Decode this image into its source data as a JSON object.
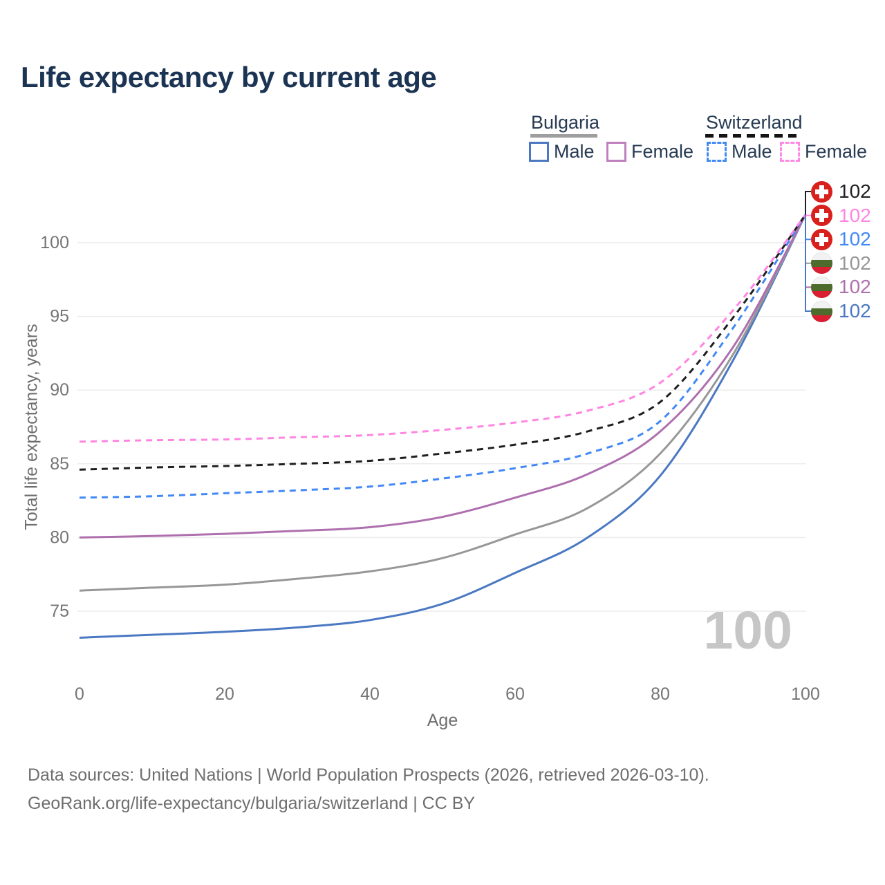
{
  "title": "Life expectancy by current age",
  "watermark": "100",
  "legend": {
    "groups": [
      {
        "title": "Bulgaria",
        "line_style": "solid",
        "underline_color": "#9e9e9e",
        "items": [
          {
            "label": "Male",
            "color": "#4a78c2"
          },
          {
            "label": "Female",
            "color": "#bf7fbf"
          }
        ]
      },
      {
        "title": "Switzerland",
        "line_style": "dashed",
        "underline_color": "#141414",
        "items": [
          {
            "label": "Male",
            "color": "#4289f5"
          },
          {
            "label": "Female",
            "color": "#ff8ae4"
          }
        ]
      }
    ]
  },
  "footer": {
    "line1": "Data sources: United Nations | World Population Prospects (2026, retrieved 2026-03-10).",
    "line2": "GeoRank.org/life-expectancy/bulgaria/switzerland | CC BY"
  },
  "chart_data": {
    "type": "line",
    "title": "Life expectancy by current age",
    "xlabel": "Age",
    "ylabel": "Total life expectancy, years",
    "x": [
      0,
      10,
      20,
      30,
      40,
      50,
      60,
      70,
      80,
      90,
      100
    ],
    "xticks": [
      0,
      20,
      40,
      60,
      80,
      100
    ],
    "yticks": [
      75,
      80,
      85,
      90,
      95,
      100
    ],
    "xlim": [
      0,
      100
    ],
    "ylim": [
      72,
      103
    ],
    "grid": "horizontal-only",
    "legend_position": "top-right",
    "highlighted_age": "100",
    "series": [
      {
        "name": "Switzerland Total",
        "country": "Switzerland",
        "sex": "total",
        "color": "#1f1f1f",
        "dashed": true,
        "flag": "switzerland",
        "end_label": "102",
        "values": [
          84.6,
          84.75,
          84.85,
          85.0,
          85.2,
          85.7,
          86.3,
          87.2,
          89.2,
          94.9,
          101.9
        ]
      },
      {
        "name": "Switzerland Female",
        "country": "Switzerland",
        "sex": "female",
        "color": "#ff85e1",
        "dashed": true,
        "flag": "switzerland",
        "end_label": "102",
        "values": [
          86.5,
          86.6,
          86.65,
          86.8,
          86.95,
          87.3,
          87.8,
          88.6,
          90.5,
          95.4,
          101.9
        ]
      },
      {
        "name": "Switzerland Male",
        "country": "Switzerland",
        "sex": "male",
        "color": "#4289f5",
        "dashed": true,
        "flag": "switzerland",
        "end_label": "102",
        "values": [
          82.7,
          82.8,
          83.0,
          83.2,
          83.45,
          84.0,
          84.7,
          85.7,
          87.9,
          94.2,
          101.9
        ]
      },
      {
        "name": "Bulgaria Total",
        "country": "Bulgaria",
        "sex": "total",
        "color": "#979797",
        "dashed": false,
        "flag": "bulgaria",
        "end_label": "102",
        "values": [
          76.4,
          76.6,
          76.8,
          77.2,
          77.7,
          78.6,
          80.2,
          82.0,
          85.7,
          92.4,
          101.9
        ]
      },
      {
        "name": "Bulgaria Female",
        "country": "Bulgaria",
        "sex": "female",
        "color": "#ae6fae",
        "dashed": false,
        "flag": "bulgaria",
        "end_label": "102",
        "values": [
          80.0,
          80.1,
          80.25,
          80.45,
          80.7,
          81.4,
          82.7,
          84.3,
          87.2,
          92.9,
          101.9
        ]
      },
      {
        "name": "Bulgaria Male",
        "country": "Bulgaria",
        "sex": "male",
        "color": "#4a78c2",
        "dashed": false,
        "flag": "bulgaria",
        "end_label": "102",
        "values": [
          73.2,
          73.4,
          73.6,
          73.9,
          74.4,
          75.5,
          77.6,
          80.0,
          84.2,
          92.0,
          101.9
        ]
      }
    ],
    "draw_order": [
      5,
      3,
      4,
      2,
      0,
      1
    ]
  }
}
